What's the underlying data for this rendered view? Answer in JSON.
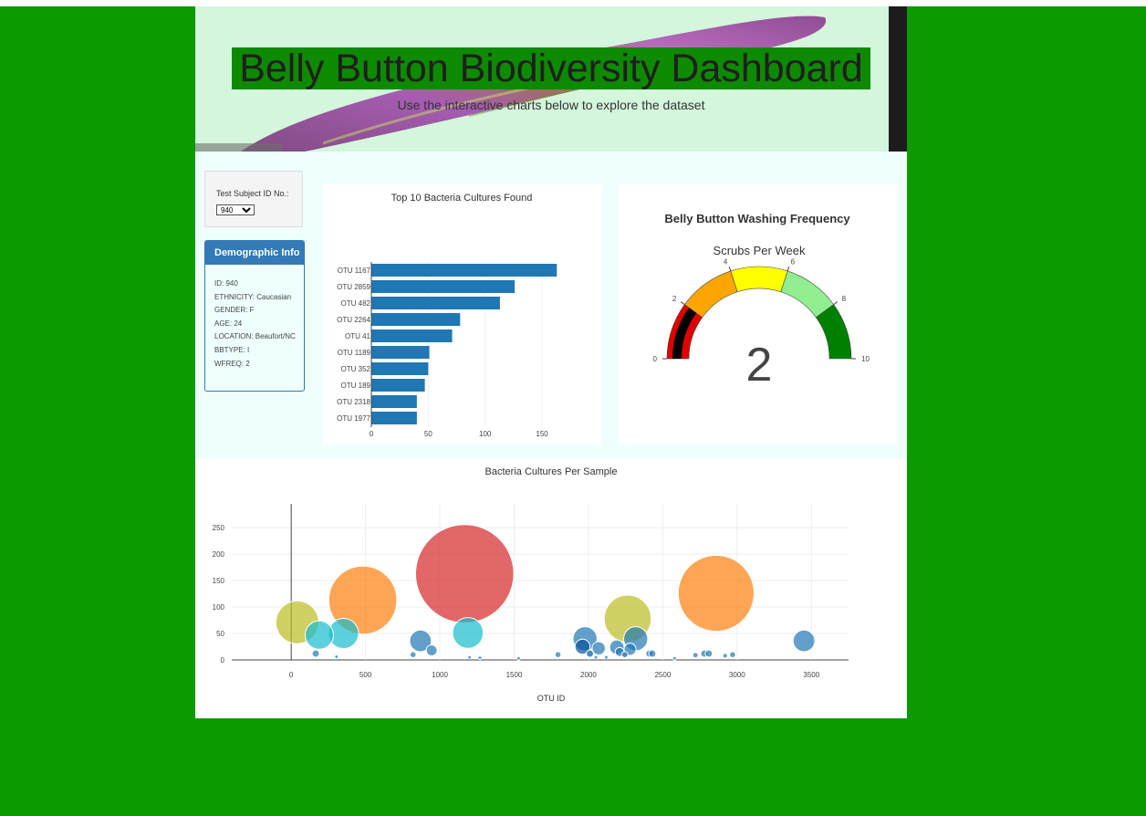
{
  "header": {
    "title": "Belly Button Biodiversity Dashboard",
    "subtitle": "Use the interactive charts below to explore the dataset"
  },
  "selector": {
    "label": "Test Subject ID No.:",
    "selected": "940"
  },
  "demographics": {
    "heading": "Demographic Info",
    "items": [
      "ID: 940",
      "ETHNICITY: Caucasian",
      "GENDER: F",
      "AGE: 24",
      "LOCATION: Beaufort/NC",
      "BBTYPE: I",
      "WFREQ: 2"
    ]
  },
  "chart_data": [
    {
      "type": "bar",
      "orientation": "horizontal",
      "title": "Top 10 Bacteria Cultures Found",
      "categories": [
        "OTU 1167",
        "OTU 2859",
        "OTU 482",
        "OTU 2264",
        "OTU 41",
        "OTU 1189",
        "OTU 352",
        "OTU 189",
        "OTU 2318",
        "OTU 1977"
      ],
      "values": [
        163,
        126,
        113,
        78,
        71,
        51,
        50,
        47,
        40,
        40
      ],
      "xlim": [
        0,
        170
      ],
      "xticks": [
        "0",
        "50",
        "100",
        "150"
      ],
      "color": "#1f77b4"
    },
    {
      "type": "gauge",
      "title": "Belly Button Washing Frequency",
      "subtitle": "Scrubs Per Week",
      "value": 2,
      "value_label": "2",
      "range": [
        0,
        10
      ],
      "ticks": [
        "0",
        "2",
        "4",
        "6",
        "8",
        "10"
      ],
      "bands": [
        {
          "from": 0,
          "to": 2,
          "color": "#e00000"
        },
        {
          "from": 2,
          "to": 4,
          "color": "#ffa500"
        },
        {
          "from": 4,
          "to": 6,
          "color": "#ffff00"
        },
        {
          "from": 6,
          "to": 8,
          "color": "#90ee90"
        },
        {
          "from": 8,
          "to": 10,
          "color": "#008000"
        }
      ],
      "needle_color": "#000000"
    },
    {
      "type": "scatter",
      "title": "Bacteria Cultures Per Sample",
      "xlabel": "OTU ID",
      "xlim": [
        -400,
        3750
      ],
      "ylim": [
        0,
        295
      ],
      "xticks": [
        0,
        500,
        1000,
        1500,
        2000,
        2500,
        3000,
        3500
      ],
      "yticks": [
        0,
        50,
        100,
        150,
        200,
        250
      ],
      "points": [
        {
          "x": 41,
          "y": 71,
          "size": 71,
          "color": "#bcbd22"
        },
        {
          "x": 189,
          "y": 47,
          "size": 47,
          "color": "#17becf"
        },
        {
          "x": 352,
          "y": 50,
          "size": 50,
          "color": "#17becf"
        },
        {
          "x": 482,
          "y": 113,
          "size": 113,
          "color": "#ff7f0e"
        },
        {
          "x": 1167,
          "y": 163,
          "size": 163,
          "color": "#d62728"
        },
        {
          "x": 1189,
          "y": 51,
          "size": 51,
          "color": "#17becf"
        },
        {
          "x": 2264,
          "y": 78,
          "size": 78,
          "color": "#bcbd22"
        },
        {
          "x": 2859,
          "y": 126,
          "size": 126,
          "color": "#ff7f0e"
        },
        {
          "x": 870,
          "y": 36,
          "size": 36,
          "color": "#1f77b4"
        },
        {
          "x": 1977,
          "y": 40,
          "size": 40,
          "color": "#1f77b4"
        },
        {
          "x": 2318,
          "y": 40,
          "size": 40,
          "color": "#1f77b4"
        },
        {
          "x": 3450,
          "y": 36,
          "size": 36,
          "color": "#1f77b4"
        },
        {
          "x": 2191,
          "y": 24,
          "size": 24,
          "color": "#1f77b4"
        },
        {
          "x": 2069,
          "y": 22,
          "size": 22,
          "color": "#1f77b4"
        },
        {
          "x": 1960,
          "y": 25,
          "size": 25,
          "color": "#08519c"
        },
        {
          "x": 2280,
          "y": 20,
          "size": 20,
          "color": "#1f77b4"
        },
        {
          "x": 945,
          "y": 18,
          "size": 18,
          "color": "#1f77b4"
        },
        {
          "x": 2210,
          "y": 15,
          "size": 15,
          "color": "#1f77b4"
        },
        {
          "x": 2010,
          "y": 12,
          "size": 12,
          "color": "#08519c"
        },
        {
          "x": 2410,
          "y": 12,
          "size": 12,
          "color": "#1f77b4"
        },
        {
          "x": 2430,
          "y": 12,
          "size": 12,
          "color": "#1f77b4"
        },
        {
          "x": 2780,
          "y": 12,
          "size": 12,
          "color": "#1f77b4"
        },
        {
          "x": 2810,
          "y": 12,
          "size": 12,
          "color": "#1f77b4"
        },
        {
          "x": 2970,
          "y": 10,
          "size": 10,
          "color": "#1f77b4"
        },
        {
          "x": 165,
          "y": 12,
          "size": 12,
          "color": "#1f77b4"
        },
        {
          "x": 1795,
          "y": 10,
          "size": 10,
          "color": "#1f77b4"
        },
        {
          "x": 2245,
          "y": 10,
          "size": 10,
          "color": "#08519c"
        },
        {
          "x": 820,
          "y": 10,
          "size": 10,
          "color": "#1f77b4"
        },
        {
          "x": 2720,
          "y": 9,
          "size": 9,
          "color": "#1f77b4"
        },
        {
          "x": 2920,
          "y": 8,
          "size": 8,
          "color": "#1f77b4"
        },
        {
          "x": 305,
          "y": 6,
          "size": 6,
          "color": "#1f77b4"
        },
        {
          "x": 1200,
          "y": 5,
          "size": 5,
          "color": "#1f77b4"
        },
        {
          "x": 1270,
          "y": 4,
          "size": 4,
          "color": "#1f77b4"
        },
        {
          "x": 2050,
          "y": 5,
          "size": 5,
          "color": "#1f77b4"
        },
        {
          "x": 2120,
          "y": 5,
          "size": 5,
          "color": "#1f77b4"
        },
        {
          "x": 2580,
          "y": 3,
          "size": 3,
          "color": "#1f77b4"
        },
        {
          "x": 1530,
          "y": 3,
          "size": 3,
          "color": "#1f77b4"
        }
      ]
    }
  ]
}
